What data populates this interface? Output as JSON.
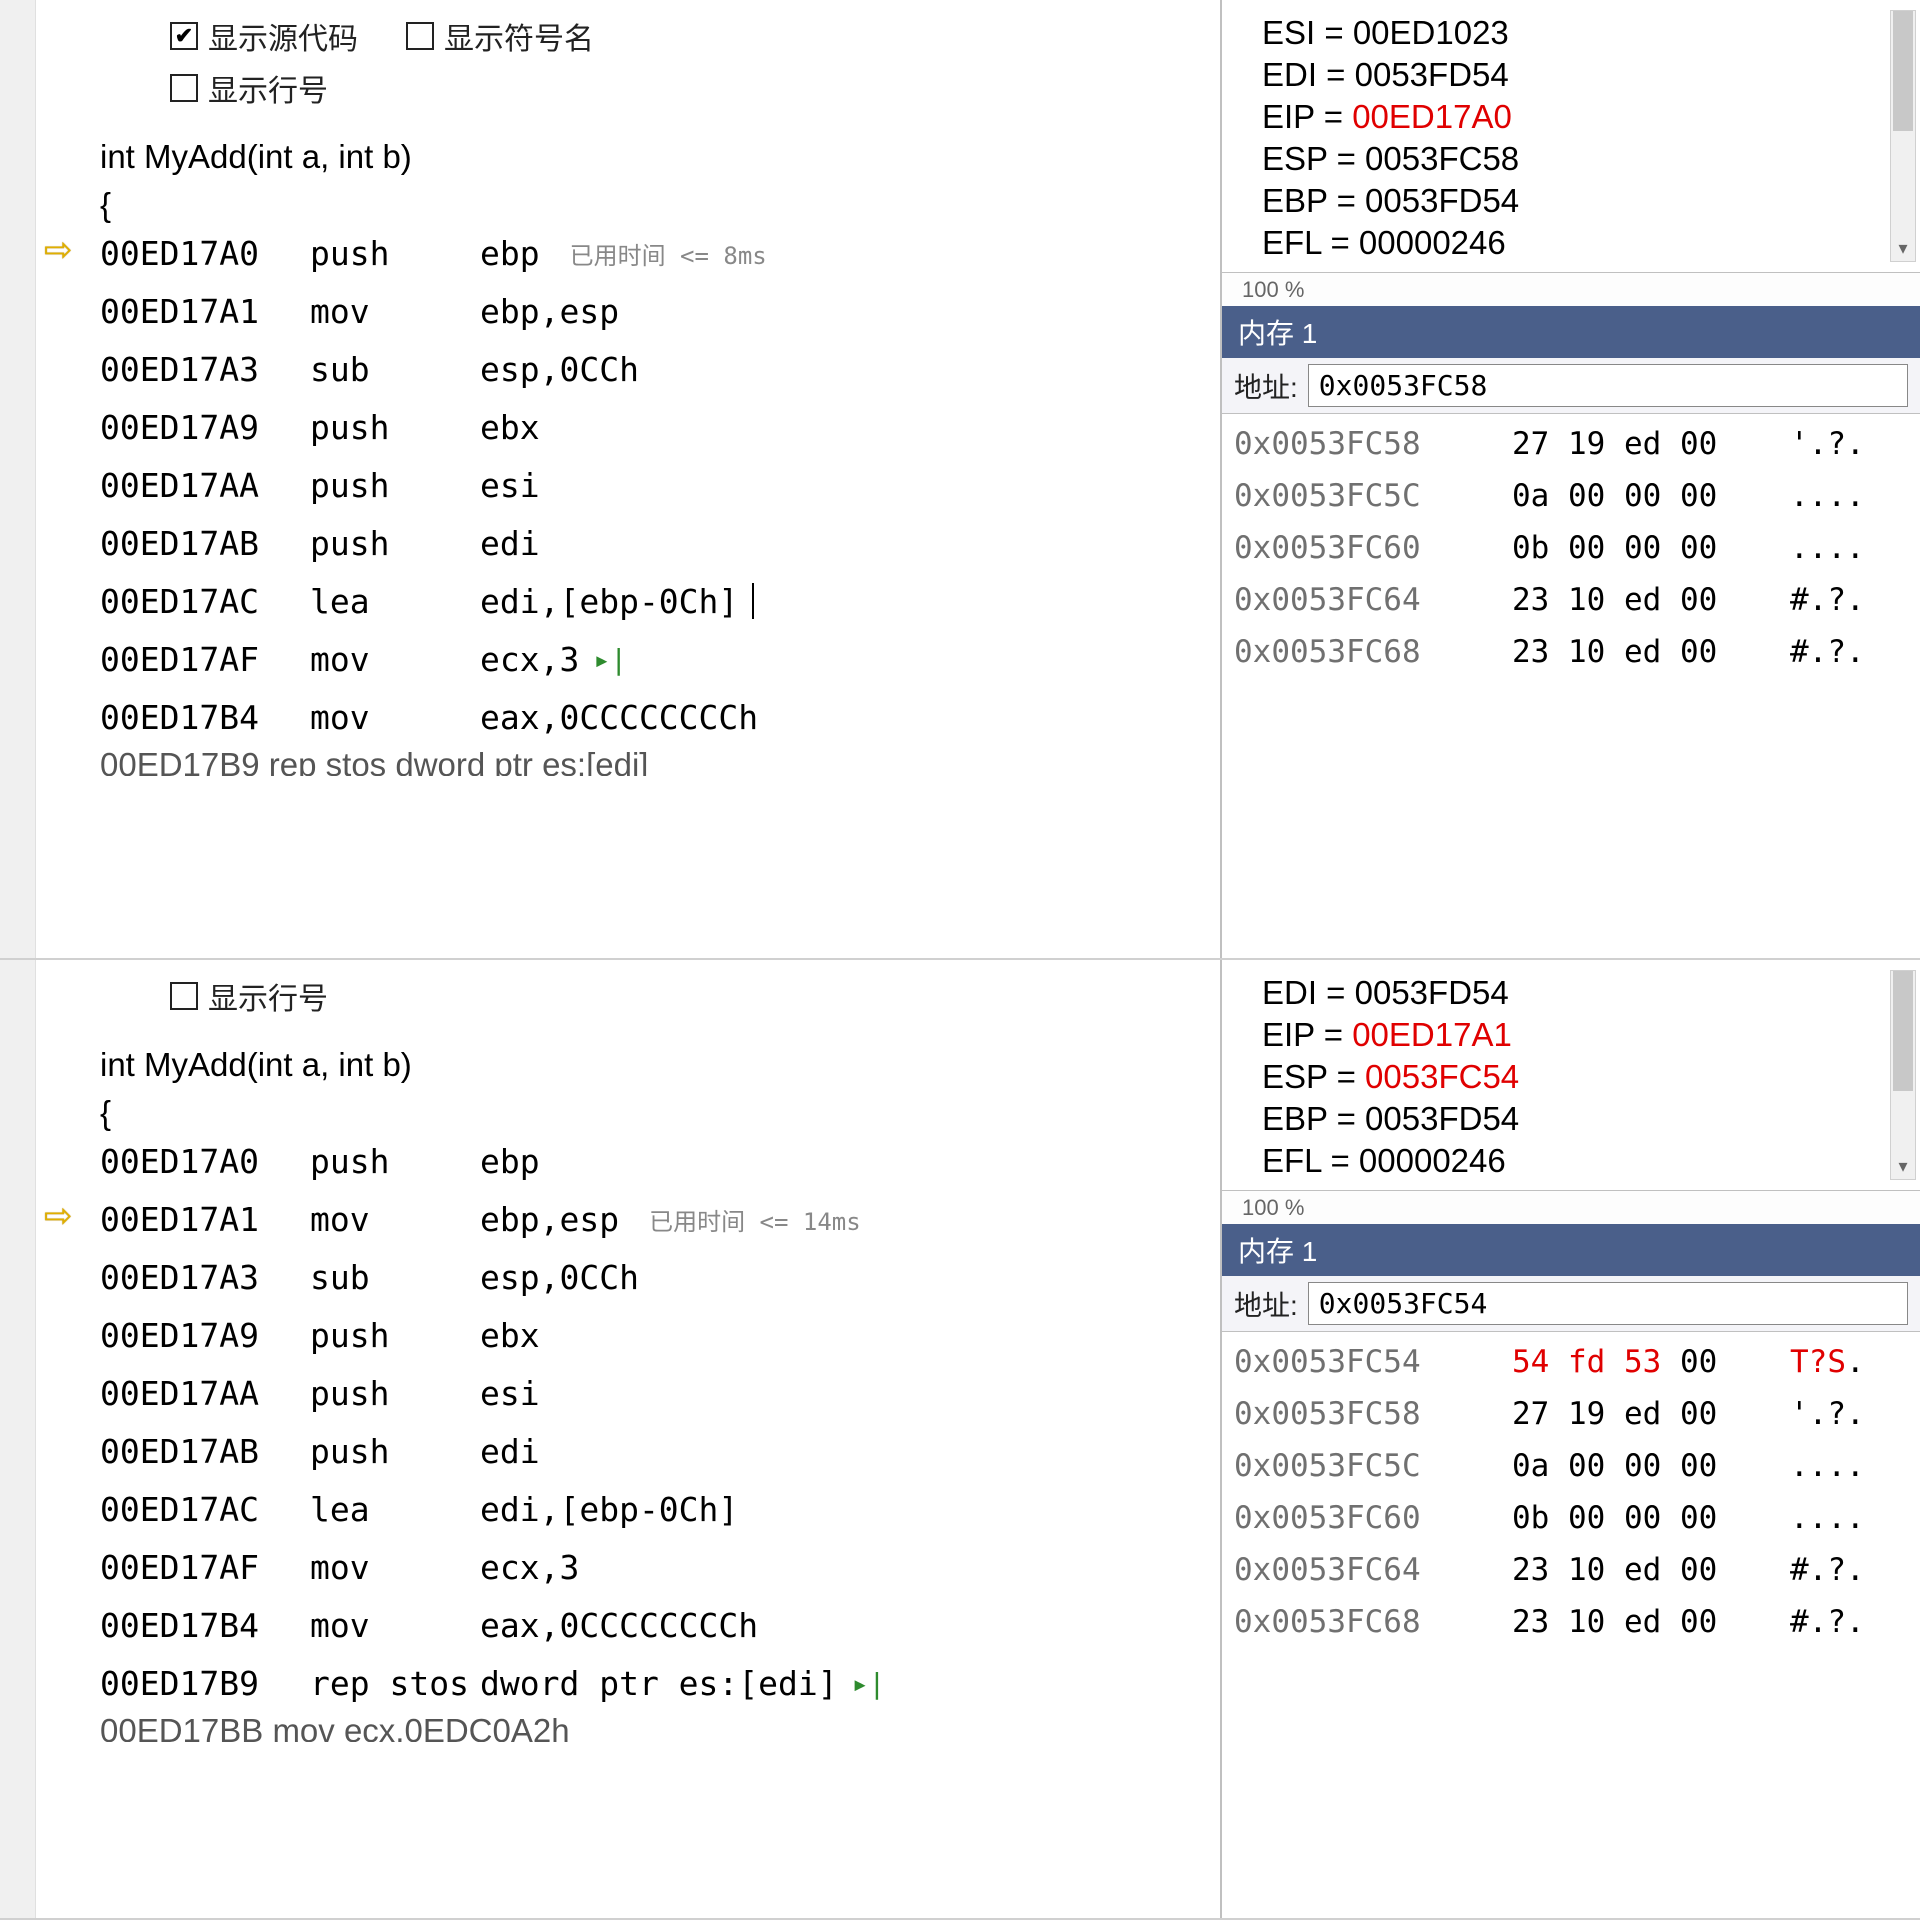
{
  "checkboxes": {
    "show_source": {
      "label": "显示源代码",
      "checked": true
    },
    "show_symbols": {
      "label": "显示符号名",
      "checked": false
    },
    "show_line_numbers": {
      "label": "显示行号",
      "checked": false
    }
  },
  "source": {
    "signature": "int MyAdd(int a, int b)",
    "open_brace": "{"
  },
  "memory_panel_title": "内存 1",
  "memory_address_label": "地址:",
  "percent_label": "100 %",
  "top": {
    "current_addr": "00ED17A0",
    "timing_label": "已用时间 <= 8ms",
    "asm": [
      {
        "addr": "00ED17A0",
        "mnemonic": "push",
        "operands": "ebp",
        "timing": true
      },
      {
        "addr": "00ED17A1",
        "mnemonic": "mov",
        "operands": "ebp,esp"
      },
      {
        "addr": "00ED17A3",
        "mnemonic": "sub",
        "operands": "esp,0CCh"
      },
      {
        "addr": "00ED17A9",
        "mnemonic": "push",
        "operands": "ebx"
      },
      {
        "addr": "00ED17AA",
        "mnemonic": "push",
        "operands": "esi"
      },
      {
        "addr": "00ED17AB",
        "mnemonic": "push",
        "operands": "edi"
      },
      {
        "addr": "00ED17AC",
        "mnemonic": "lea",
        "operands": "edi,[ebp-0Ch]",
        "cursor": true
      },
      {
        "addr": "00ED17AF",
        "mnemonic": "mov",
        "operands": "ecx,3",
        "run_icon": true
      },
      {
        "addr": "00ED17B4",
        "mnemonic": "mov",
        "operands": "eax,0CCCCCCCCh"
      }
    ],
    "asm_overflow": "00ED17B9  rep stos   dword ptr es:[edi]",
    "registers": [
      {
        "name": "ESI",
        "value": "00ED1023",
        "changed": false
      },
      {
        "name": "EDI",
        "value": "0053FD54",
        "changed": false
      },
      {
        "name": "EIP",
        "value": "00ED17A0",
        "changed": true
      },
      {
        "name": "ESP",
        "value": "0053FC58",
        "changed": false
      },
      {
        "name": "EBP",
        "value": "0053FD54",
        "changed": false
      },
      {
        "name": "EFL",
        "value": "00000246",
        "changed": false
      }
    ],
    "memory_address": "0x0053FC58",
    "memory": [
      {
        "addr": "0x0053FC58",
        "bytes": "27 19 ed 00",
        "ascii": "'.?."
      },
      {
        "addr": "0x0053FC5C",
        "bytes": "0a 00 00 00",
        "ascii": "...."
      },
      {
        "addr": "0x0053FC60",
        "bytes": "0b 00 00 00",
        "ascii": "...."
      },
      {
        "addr": "0x0053FC64",
        "bytes": "23 10 ed 00",
        "ascii": "#.?."
      },
      {
        "addr": "0x0053FC68",
        "bytes": "23 10 ed 00",
        "ascii": "#.?."
      }
    ]
  },
  "bottom": {
    "current_addr": "00ED17A1",
    "timing_label": "已用时间 <= 14ms",
    "asm": [
      {
        "addr": "00ED17A0",
        "mnemonic": "push",
        "operands": "ebp"
      },
      {
        "addr": "00ED17A1",
        "mnemonic": "mov",
        "operands": "ebp,esp",
        "timing": true
      },
      {
        "addr": "00ED17A3",
        "mnemonic": "sub",
        "operands": "esp,0CCh"
      },
      {
        "addr": "00ED17A9",
        "mnemonic": "push",
        "operands": "ebx"
      },
      {
        "addr": "00ED17AA",
        "mnemonic": "push",
        "operands": "esi"
      },
      {
        "addr": "00ED17AB",
        "mnemonic": "push",
        "operands": "edi"
      },
      {
        "addr": "00ED17AC",
        "mnemonic": "lea",
        "operands": "edi,[ebp-0Ch]"
      },
      {
        "addr": "00ED17AF",
        "mnemonic": "mov",
        "operands": "ecx,3"
      },
      {
        "addr": "00ED17B4",
        "mnemonic": "mov",
        "operands": "eax,0CCCCCCCCh"
      },
      {
        "addr": "00ED17B9",
        "mnemonic": "rep stos",
        "operands": "dword ptr es:[edi]",
        "run_icon": true
      }
    ],
    "asm_overflow": "00ED17BB  mov        ecx,0EDC0A2h",
    "registers": [
      {
        "name": "EDI",
        "value": "0053FD54",
        "changed": false
      },
      {
        "name": "EIP",
        "value": "00ED17A1",
        "changed": true
      },
      {
        "name": "ESP",
        "value": "0053FC54",
        "changed": true
      },
      {
        "name": "EBP",
        "value": "0053FD54",
        "changed": false
      },
      {
        "name": "EFL",
        "value": "00000246",
        "changed": false
      }
    ],
    "memory_address": "0x0053FC54",
    "memory": [
      {
        "addr": "0x0053FC54",
        "bytes_pre": "54 fd 53 ",
        "bytes_post": "00",
        "ascii_pre": "T?S",
        "ascii_post": ".",
        "changed": true
      },
      {
        "addr": "0x0053FC58",
        "bytes": "27 19 ed 00",
        "ascii": "'.?."
      },
      {
        "addr": "0x0053FC5C",
        "bytes": "0a 00 00 00",
        "ascii": "...."
      },
      {
        "addr": "0x0053FC60",
        "bytes": "0b 00 00 00",
        "ascii": "...."
      },
      {
        "addr": "0x0053FC64",
        "bytes": "23 10 ed 00",
        "ascii": "#.?."
      },
      {
        "addr": "0x0053FC68",
        "bytes": "23 10 ed 00",
        "ascii": "#.?."
      }
    ]
  }
}
